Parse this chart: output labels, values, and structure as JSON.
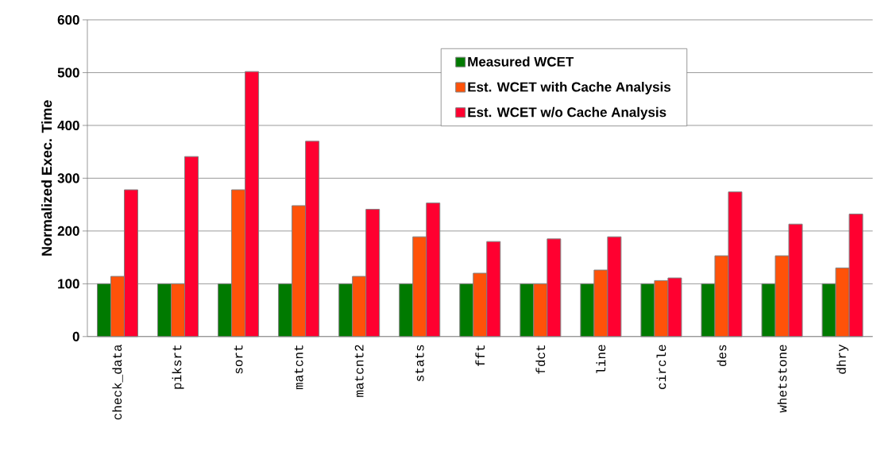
{
  "chart_data": {
    "type": "bar",
    "ylabel": "Normalized Exec. Time",
    "categories": [
      "check_data",
      "piksrt",
      "sort",
      "matcnt",
      "matcnt2",
      "stats",
      "fft",
      "fdct",
      "line",
      "circle",
      "des",
      "whetstone",
      "dhry"
    ],
    "series": [
      {
        "name": "Measured WCET",
        "color": "#007a00",
        "values": [
          100,
          100,
          100,
          100,
          100,
          100,
          100,
          100,
          100,
          100,
          100,
          100,
          100
        ]
      },
      {
        "name": "Est. WCET with Cache Analysis",
        "color": "#ff5209",
        "values": [
          114,
          100,
          278,
          248,
          114,
          189,
          120,
          100,
          126,
          106,
          153,
          153,
          130
        ]
      },
      {
        "name": "Est. WCET w/o Cache Analysis",
        "color": "#ff0030",
        "values": [
          278,
          341,
          502,
          370,
          241,
          253,
          180,
          185,
          189,
          111,
          274,
          213,
          232
        ]
      }
    ],
    "ylim": [
      0,
      600
    ],
    "yticks": [
      0,
      100,
      200,
      300,
      400,
      500,
      600
    ],
    "grid": "y",
    "legend": "top right"
  }
}
